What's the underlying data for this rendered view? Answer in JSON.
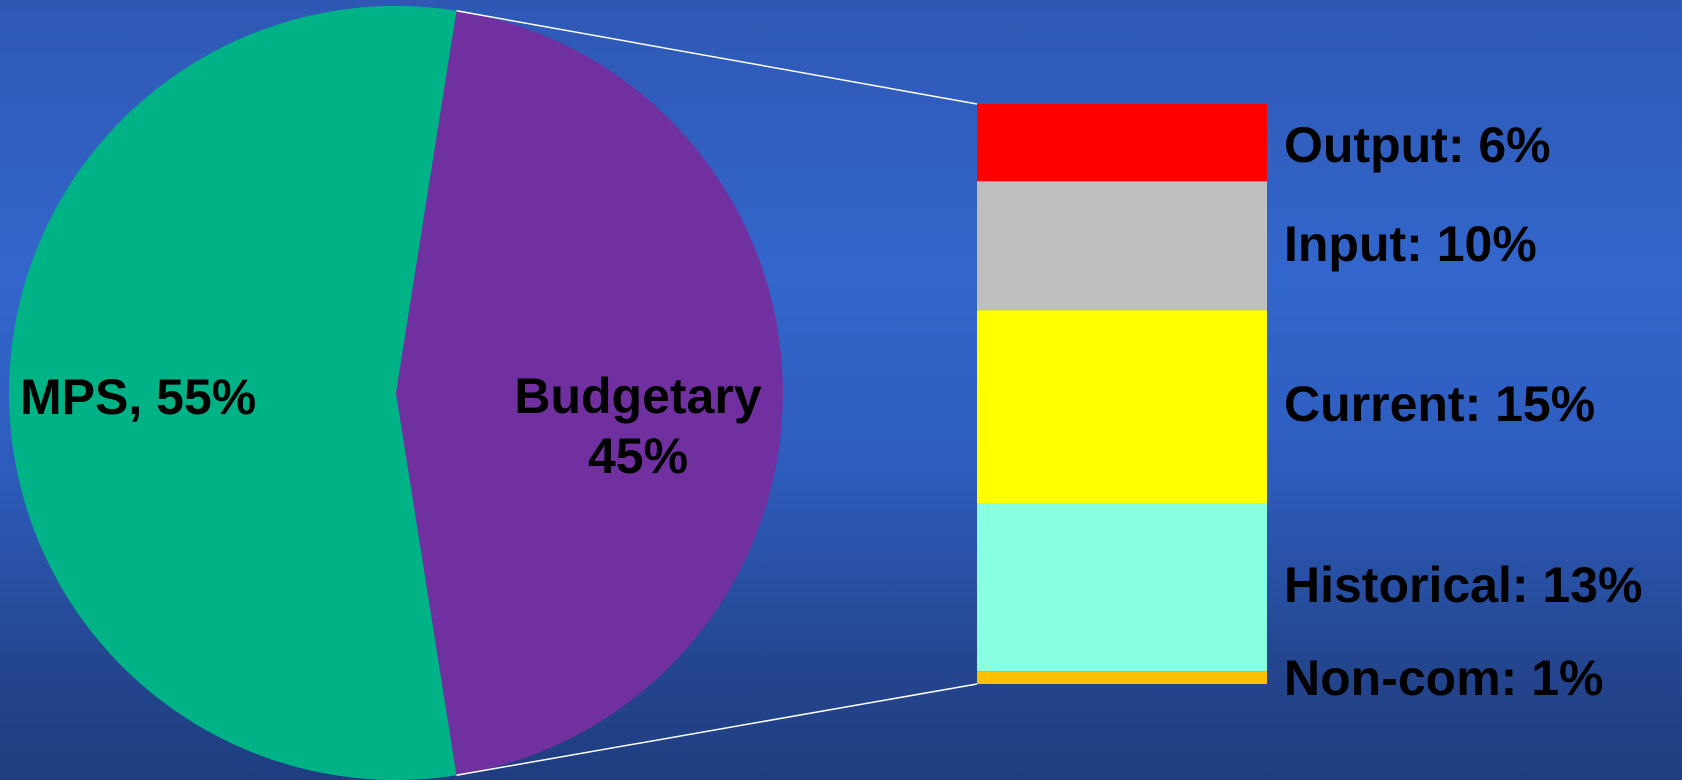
{
  "chart_data": {
    "type": "pie",
    "title": "",
    "pie": {
      "slices": [
        {
          "label": "MPS, 55%",
          "value": 55,
          "color": "#00b386"
        },
        {
          "label_lines": [
            "Budgetary",
            "45%"
          ],
          "value": 45,
          "color": "#7030a0"
        }
      ]
    },
    "breakdown": {
      "type": "stacked-bar",
      "parent": "Budgetary",
      "segments": [
        {
          "label": "Output: 6%",
          "value": 6,
          "color": "#ff0000"
        },
        {
          "label": "Input: 10%",
          "value": 10,
          "color": "#bfbfbf"
        },
        {
          "label": "Current: 15%",
          "value": 15,
          "color": "#ffff00"
        },
        {
          "label": "Historical: 13%",
          "value": 13,
          "color": "#88ffe0"
        },
        {
          "label": "Non-com: 1%",
          "value": 1,
          "color": "#ffc000"
        }
      ]
    }
  }
}
